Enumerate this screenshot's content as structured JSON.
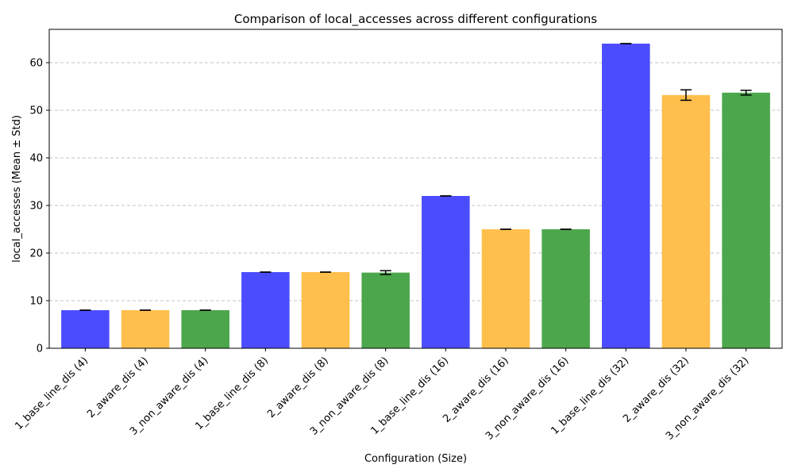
{
  "chart_data": {
    "type": "bar",
    "title": "Comparison of local_accesses across different configurations",
    "xlabel": "Configuration (Size)",
    "ylabel": "local_accesses (Mean ± Std)",
    "ylim": [
      0,
      67
    ],
    "yticks": [
      0,
      10,
      20,
      30,
      40,
      50,
      60
    ],
    "grid": "y-dashed",
    "categories": [
      "1_base_line_dis (4)",
      "2_aware_dis (4)",
      "3_non_aware_dis (4)",
      "1_base_line_dis (8)",
      "2_aware_dis (8)",
      "3_non_aware_dis (8)",
      "1_base_line_dis (16)",
      "2_aware_dis (16)",
      "3_non_aware_dis (16)",
      "1_base_line_dis (32)",
      "2_aware_dis (32)",
      "3_non_aware_dis (32)"
    ],
    "values": [
      8,
      8,
      8,
      16,
      16,
      15.9,
      32,
      25,
      25,
      64,
      53.2,
      53.7
    ],
    "errors": [
      0,
      0,
      0,
      0,
      0,
      0.4,
      0,
      0,
      0,
      0,
      1.1,
      0.5
    ],
    "colors": [
      "#4c4cff",
      "#ffbf4c",
      "#4ca64c",
      "#4c4cff",
      "#ffbf4c",
      "#4ca64c",
      "#4c4cff",
      "#ffbf4c",
      "#4ca64c",
      "#4c4cff",
      "#ffbf4c",
      "#4ca64c"
    ]
  }
}
